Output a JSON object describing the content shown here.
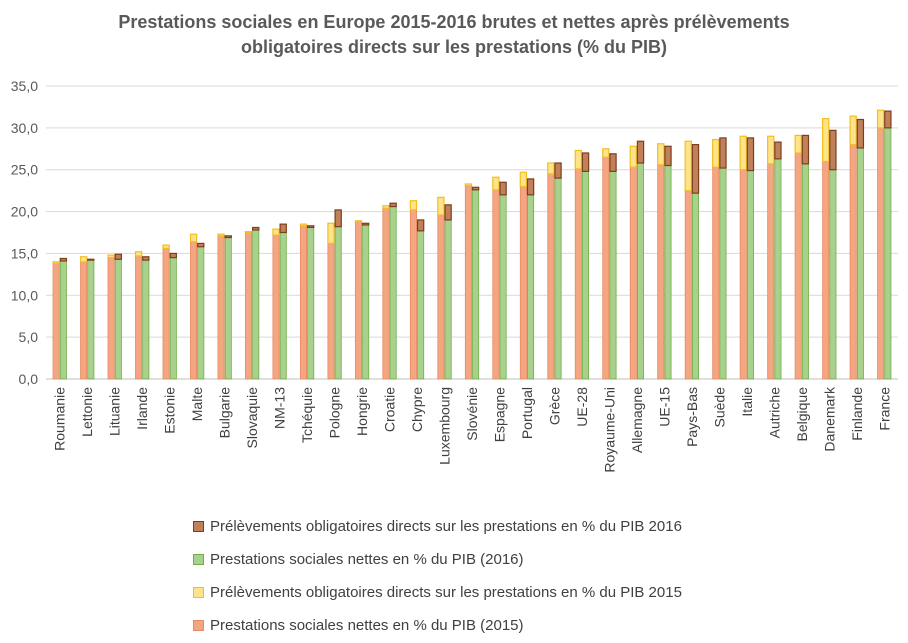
{
  "chart_data": {
    "type": "bar",
    "title_lines": [
      "Prestations sociales en Europe 2015-2016 brutes et nettes après prélèvements",
      "obligatoires directs sur les prestations (% du PIB)"
    ],
    "ylim": [
      0,
      35
    ],
    "yticks": [
      "0,0",
      "5,0",
      "10,0",
      "15,0",
      "20,0",
      "25,0",
      "30,0",
      "35,0"
    ],
    "grid": true,
    "legend_position": "bottom",
    "categories": [
      "Roumanie",
      "Lettonie",
      "Lituanie",
      "Irlande",
      "Estonie",
      "Malte",
      "Bulgarie",
      "Slovaquie",
      "NM-13",
      "Tchéquie",
      "Pologne",
      "Hongrie",
      "Croatie",
      "Chypre",
      "Luxembourg",
      "Slovénie",
      "Espagne",
      "Portugal",
      "Grèce",
      "UE-28",
      "Royaume-Uni",
      "Allemagne",
      "UE-15",
      "Pays-Bas",
      "Suède",
      "Italie",
      "Autriche",
      "Belgique",
      "Danemark",
      "Finlande",
      "France"
    ],
    "series": [
      {
        "name": "Prestations sociales nettes  en % du PIB (2015)",
        "color": "#F4A582",
        "stroke": "#E88A5F",
        "values": [
          13.8,
          14.0,
          14.5,
          14.7,
          15.6,
          16.4,
          17.1,
          17.5,
          17.2,
          18.3,
          16.2,
          18.8,
          20.4,
          20.2,
          19.6,
          23.1,
          22.6,
          23.0,
          24.5,
          25.1,
          26.5,
          25.3,
          25.6,
          22.5,
          25.3,
          25.0,
          25.7,
          27.0,
          26.0,
          28.0,
          30.0
        ]
      },
      {
        "name": "Prélèvements obligatoires directs sur les prestations en % du PIB 2015",
        "color": "#FFE38A",
        "stroke": "#F0C020",
        "values": [
          0.2,
          0.6,
          0.3,
          0.5,
          0.4,
          0.9,
          0.2,
          0.1,
          0.7,
          0.2,
          2.4,
          0.1,
          0.3,
          1.1,
          2.1,
          0.2,
          1.5,
          1.7,
          1.3,
          2.2,
          1.0,
          2.5,
          2.5,
          5.9,
          3.3,
          4.0,
          3.3,
          2.1,
          5.1,
          3.4,
          2.1
        ]
      },
      {
        "name": "Prestations sociales nettes  en % du PIB (2016)",
        "color": "#A9D18E",
        "stroke": "#70AD47",
        "values": [
          14.1,
          14.2,
          14.3,
          14.2,
          14.5,
          15.8,
          16.9,
          17.8,
          17.5,
          18.1,
          18.2,
          18.4,
          20.6,
          17.7,
          19.0,
          22.6,
          22.0,
          22.0,
          24.0,
          24.8,
          24.8,
          25.8,
          25.5,
          22.2,
          25.2,
          24.9,
          26.3,
          25.7,
          25.0,
          27.6,
          30.0
        ]
      },
      {
        "name": "Prélèvements obligatoires directs sur les prestations en % du PIB 2016",
        "color": "#C0805A",
        "stroke": "#7B3F1E",
        "values": [
          0.3,
          0.1,
          0.6,
          0.4,
          0.5,
          0.4,
          0.2,
          0.3,
          1.0,
          0.2,
          2.0,
          0.2,
          0.4,
          1.3,
          1.8,
          0.3,
          1.5,
          1.9,
          1.8,
          2.2,
          2.1,
          2.6,
          2.3,
          5.8,
          3.6,
          3.9,
          2.0,
          3.4,
          4.7,
          3.4,
          2.0
        ]
      }
    ]
  },
  "legend": [
    {
      "label": "Prélèvements obligatoires directs sur les prestations en % du PIB 2016",
      "color": "#C0805A",
      "border": "#7B3F1E"
    },
    {
      "label": "Prestations sociales nettes  en % du PIB (2016)",
      "color": "#A9D18E",
      "border": "#70AD47"
    },
    {
      "label": "Prélèvements obligatoires directs sur les prestations en % du PIB 2015",
      "color": "#FFE38A",
      "border": "#F0C020"
    },
    {
      "label": "Prestations sociales nettes  en % du PIB (2015)",
      "color": "#F4A582",
      "border": "#E88A5F"
    }
  ]
}
